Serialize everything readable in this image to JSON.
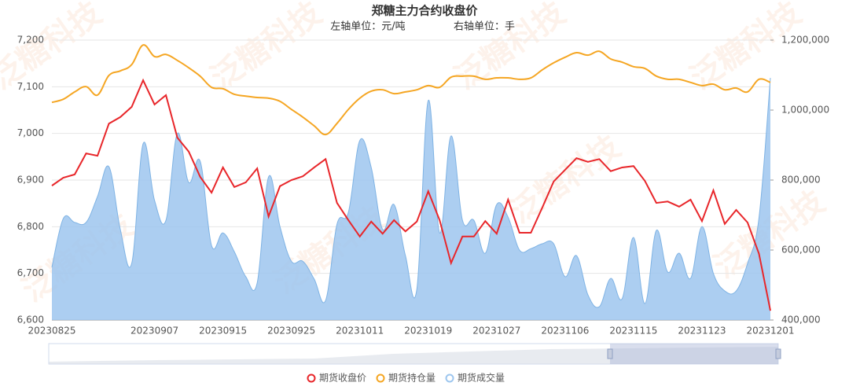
{
  "chart_data": {
    "type": "line",
    "title": "郑糖主力合约收盘价",
    "left_axis_unit": "左轴单位：元/吨",
    "right_axis_unit": "右轴单位：手",
    "watermark": "泛糖科技",
    "categories": [
      "20230825",
      null,
      null,
      null,
      null,
      null,
      null,
      null,
      null,
      "20230907",
      null,
      null,
      null,
      null,
      null,
      "20230915",
      null,
      null,
      null,
      null,
      null,
      "20230925",
      null,
      null,
      null,
      null,
      null,
      "20231011",
      null,
      null,
      null,
      null,
      null,
      "20231019",
      null,
      null,
      null,
      null,
      null,
      "20231027",
      null,
      null,
      null,
      null,
      null,
      "20231106",
      null,
      null,
      null,
      null,
      null,
      "20231115",
      null,
      null,
      null,
      null,
      null,
      "20231123",
      null,
      null,
      null,
      null,
      null,
      "20231201"
    ],
    "series": [
      {
        "name": "期货成交量",
        "type": "area",
        "axis": "y2",
        "color": "#9dc6ef",
        "smooth": true,
        "values": [
          551000,
          690000,
          679000,
          679000,
          753000,
          838000,
          659000,
          562000,
          904000,
          742000,
          685000,
          933000,
          793000,
          854000,
          613000,
          649000,
          595000,
          524000,
          506000,
          809000,
          667000,
          568000,
          568000,
          517000,
          456000,
          674000,
          708000,
          913000,
          836000,
          659000,
          730000,
          584000,
          488000,
          1027000,
          649000,
          926000,
          685000,
          685000,
          591000,
          730000,
          694000,
          600000,
          604000,
          618000,
          618000,
          524000,
          584000,
          472000,
          438000,
          519000,
          461000,
          636000,
          447000,
          656000,
          537000,
          591000,
          519000,
          667000,
          533000,
          483000,
          483000,
          562000,
          692000,
          1092000
        ]
      },
      {
        "name": "期货持仓量",
        "type": "line",
        "axis": "y2",
        "color": "#f5a623",
        "smooth": true,
        "values": [
          1022000,
          1031000,
          1052000,
          1067000,
          1043000,
          1099000,
          1112000,
          1130000,
          1186000,
          1153000,
          1159000,
          1142000,
          1121000,
          1097000,
          1065000,
          1061000,
          1045000,
          1040000,
          1036000,
          1034000,
          1025000,
          1002000,
          980000,
          955000,
          930000,
          962000,
          1002000,
          1034000,
          1054000,
          1058000,
          1047000,
          1052000,
          1058000,
          1070000,
          1065000,
          1094000,
          1097000,
          1097000,
          1088000,
          1092000,
          1092000,
          1088000,
          1092000,
          1115000,
          1135000,
          1151000,
          1164000,
          1157000,
          1168000,
          1146000,
          1137000,
          1124000,
          1119000,
          1097000,
          1088000,
          1088000,
          1079000,
          1070000,
          1074000,
          1058000,
          1063000,
          1052000,
          1088000,
          1079000
        ]
      },
      {
        "name": "期货收盘价",
        "type": "line",
        "color": "#e8262a",
        "smooth": false,
        "values": [
          6888,
          6905,
          6912,
          6957,
          6952,
          7021,
          7035,
          7057,
          7114,
          7062,
          7082,
          6991,
          6961,
          6907,
          6873,
          6927,
          6885,
          6895,
          6925,
          6822,
          6887,
          6900,
          6908,
          6927,
          6945,
          6851,
          6814,
          6779,
          6811,
          6785,
          6814,
          6790,
          6811,
          6876,
          6814,
          6722,
          6779,
          6779,
          6812,
          6785,
          6858,
          6787,
          6787,
          6841,
          6897,
          6922,
          6947,
          6939,
          6945,
          6919,
          6927,
          6930,
          6898,
          6851,
          6854,
          6843,
          6858,
          6812,
          6878,
          6806,
          6836,
          6809,
          6742,
          6620
        ]
      }
    ],
    "ylim": [
      6600,
      7200
    ],
    "yticks": [
      {
        "value": 6600,
        "label": "6,600"
      },
      {
        "value": 6700,
        "label": "6,700"
      },
      {
        "value": 6800,
        "label": "6,800"
      },
      {
        "value": 6900,
        "label": "6,900"
      },
      {
        "value": 7000,
        "label": "7,000"
      },
      {
        "value": 7100,
        "label": "7,100"
      },
      {
        "value": 7200,
        "label": "7,200"
      }
    ],
    "y2lim": [
      400000,
      1200000
    ],
    "y2ticks": [
      {
        "value": 400000,
        "label": "400,000"
      },
      {
        "value": 600000,
        "label": "600,000"
      },
      {
        "value": 800000,
        "label": "800,000"
      },
      {
        "value": 1000000,
        "label": "1,000,000"
      },
      {
        "value": 1200000,
        "label": "1,200,000"
      }
    ],
    "grid": true,
    "legend": "bottom"
  }
}
